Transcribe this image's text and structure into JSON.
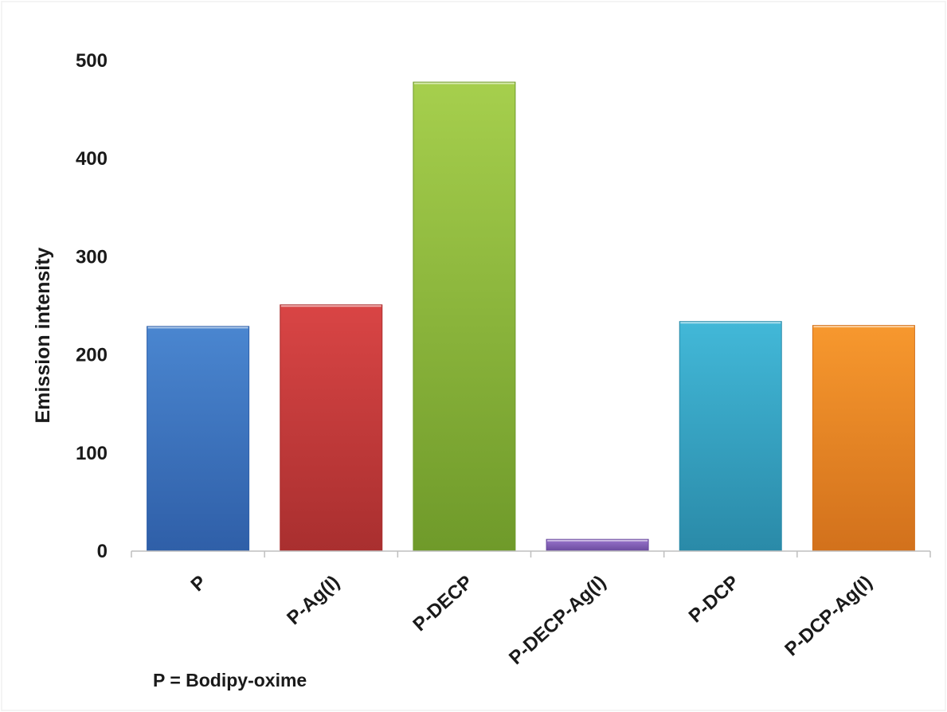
{
  "colors": {
    "axis": "#bfbfbf",
    "text": "#1a1a1a",
    "background": "#ffffff"
  },
  "chart_data": {
    "type": "bar",
    "categories": [
      "P",
      "P-Ag(I)",
      "P-DECP",
      "P-DECP-Ag(I)",
      "P-DCP",
      "P-DCP-Ag(I)"
    ],
    "values": [
      229,
      251,
      478,
      12,
      234,
      230
    ],
    "bar_colors": [
      [
        "#4a86d0",
        "#2f5fa8"
      ],
      [
        "#d94545",
        "#a92f2f"
      ],
      [
        "#a6cf4d",
        "#6f9a2a"
      ],
      [
        "#9a76cc",
        "#6a4a9e"
      ],
      [
        "#42b8d8",
        "#2a8aa8"
      ],
      [
        "#f7982e",
        "#d2711c"
      ]
    ],
    "title": "",
    "xlabel": "",
    "ylabel": "Emission intensity",
    "ylim": [
      0,
      500
    ],
    "yticks": [
      0,
      100,
      200,
      300,
      400,
      500
    ],
    "grid": false,
    "legend": "none",
    "annotation": "P = Bodipy-oxime"
  }
}
